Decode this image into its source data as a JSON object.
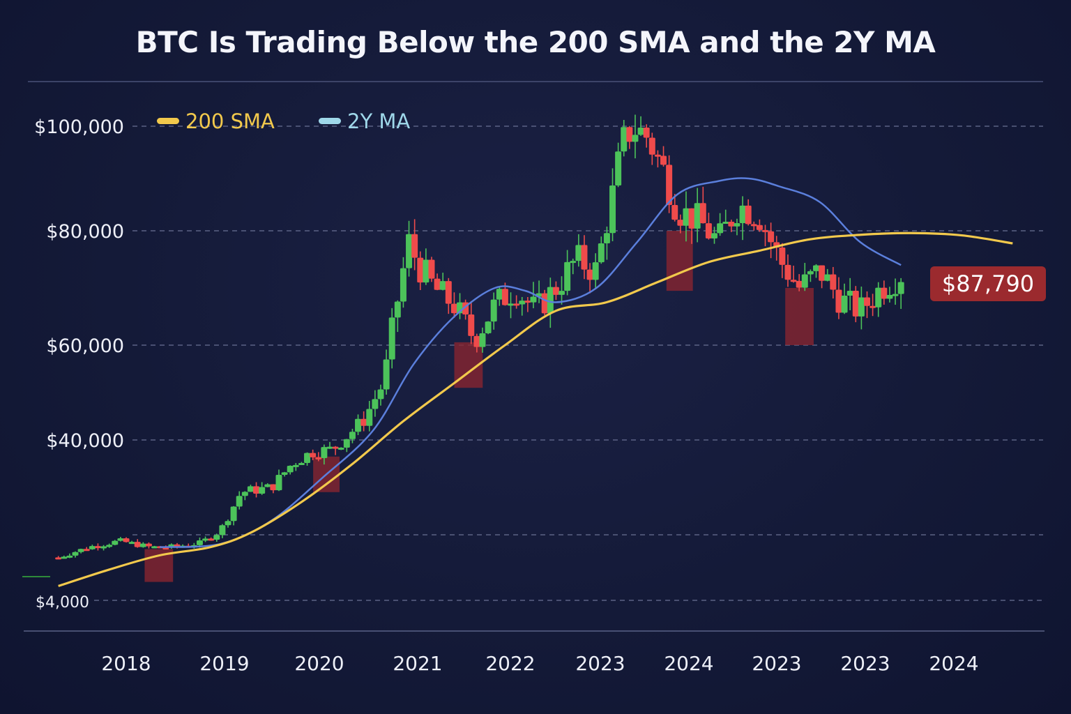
{
  "chart_data": {
    "type": "candlestick",
    "title": "BTC Is Trading Below the 200 SMA and the 2Y MA",
    "xlabel": "",
    "ylabel": "",
    "grid": true,
    "legend_position": "top-left",
    "y_ticks": [
      {
        "label": "$100,000",
        "value": 100000
      },
      {
        "label": "$80,000",
        "value": 80000
      },
      {
        "label": "$60,000",
        "value": 60000
      },
      {
        "label": "$40,000",
        "value": 40000
      },
      {
        "label": "",
        "value": 20000
      },
      {
        "label": "$4,000",
        "value": 4000
      }
    ],
    "x_ticks": [
      "2018",
      "2019",
      "2020",
      "2021",
      "2022",
      "2023",
      "2024",
      "2023",
      "2023",
      "2024"
    ],
    "legend": [
      {
        "name": "200 SMA",
        "color": "#f2c94c"
      },
      {
        "name": "2Y MA",
        "color": "#9fd8ea"
      }
    ],
    "colors": {
      "up": "#4cc35a",
      "down": "#ef4b4b",
      "sma200": "#f2c94c",
      "ma2y": "#5b7fdc",
      "highlight": "#8b2530",
      "price_badge": "#9b2a2e"
    },
    "price_label": "$87,790",
    "sma200": [
      [
        0.03,
        7500
      ],
      [
        0.08,
        11500
      ],
      [
        0.13,
        15000
      ],
      [
        0.18,
        17000
      ],
      [
        0.22,
        20500
      ],
      [
        0.27,
        27000
      ],
      [
        0.32,
        35000
      ],
      [
        0.37,
        44000
      ],
      [
        0.42,
        52000
      ],
      [
        0.47,
        60000
      ],
      [
        0.52,
        66000
      ],
      [
        0.57,
        67500
      ],
      [
        0.62,
        71000
      ],
      [
        0.67,
        74500
      ],
      [
        0.72,
        76500
      ],
      [
        0.77,
        78500
      ],
      [
        0.82,
        79300
      ],
      [
        0.87,
        79600
      ],
      [
        0.92,
        79200
      ],
      [
        0.97,
        77800
      ]
    ],
    "ma2y": [
      [
        0.13,
        17000
      ],
      [
        0.19,
        17800
      ],
      [
        0.24,
        23000
      ],
      [
        0.29,
        32000
      ],
      [
        0.34,
        42000
      ],
      [
        0.38,
        56000
      ],
      [
        0.42,
        65000
      ],
      [
        0.46,
        70000
      ],
      [
        0.49,
        69500
      ],
      [
        0.52,
        67500
      ],
      [
        0.56,
        70000
      ],
      [
        0.6,
        78000
      ],
      [
        0.64,
        87000
      ],
      [
        0.68,
        89500
      ],
      [
        0.71,
        90000
      ],
      [
        0.74,
        88500
      ],
      [
        0.78,
        85500
      ],
      [
        0.82,
        78000
      ],
      [
        0.86,
        74000
      ]
    ],
    "highlight_zones": [
      {
        "x0": 0.115,
        "x1": 0.143,
        "y0": 8500,
        "y1": 16500
      },
      {
        "x0": 0.281,
        "x1": 0.307,
        "y0": 29000,
        "y1": 36500
      },
      {
        "x0": 0.42,
        "x1": 0.448,
        "y0": 51000,
        "y1": 60500
      },
      {
        "x0": 0.629,
        "x1": 0.655,
        "y0": 69500,
        "y1": 80000
      },
      {
        "x0": 0.746,
        "x1": 0.774,
        "y0": 60000,
        "y1": 70000
      }
    ],
    "price_path": [
      [
        0.03,
        14500
      ],
      [
        0.06,
        17000
      ],
      [
        0.09,
        18500
      ],
      [
        0.12,
        17000
      ],
      [
        0.14,
        17000
      ],
      [
        0.17,
        18000
      ],
      [
        0.19,
        21000
      ],
      [
        0.21,
        29000
      ],
      [
        0.24,
        30000
      ],
      [
        0.26,
        35000
      ],
      [
        0.28,
        37500
      ],
      [
        0.3,
        38000
      ],
      [
        0.33,
        44000
      ],
      [
        0.35,
        52000
      ],
      [
        0.36,
        64000
      ],
      [
        0.375,
        78000
      ],
      [
        0.385,
        74000
      ],
      [
        0.4,
        70000
      ],
      [
        0.42,
        67000
      ],
      [
        0.44,
        61000
      ],
      [
        0.46,
        67000
      ],
      [
        0.48,
        70000
      ],
      [
        0.5,
        66000
      ],
      [
        0.52,
        70000
      ],
      [
        0.54,
        75000
      ],
      [
        0.56,
        73000
      ],
      [
        0.575,
        86000
      ],
      [
        0.585,
        96000
      ],
      [
        0.595,
        100000
      ],
      [
        0.61,
        98000
      ],
      [
        0.625,
        92000
      ],
      [
        0.64,
        84000
      ],
      [
        0.66,
        82000
      ],
      [
        0.68,
        78000
      ],
      [
        0.7,
        85000
      ],
      [
        0.72,
        83000
      ],
      [
        0.74,
        75000
      ],
      [
        0.76,
        70000
      ],
      [
        0.78,
        73000
      ],
      [
        0.8,
        68000
      ],
      [
        0.82,
        66000
      ],
      [
        0.84,
        70000
      ],
      [
        0.86,
        72500
      ]
    ]
  }
}
